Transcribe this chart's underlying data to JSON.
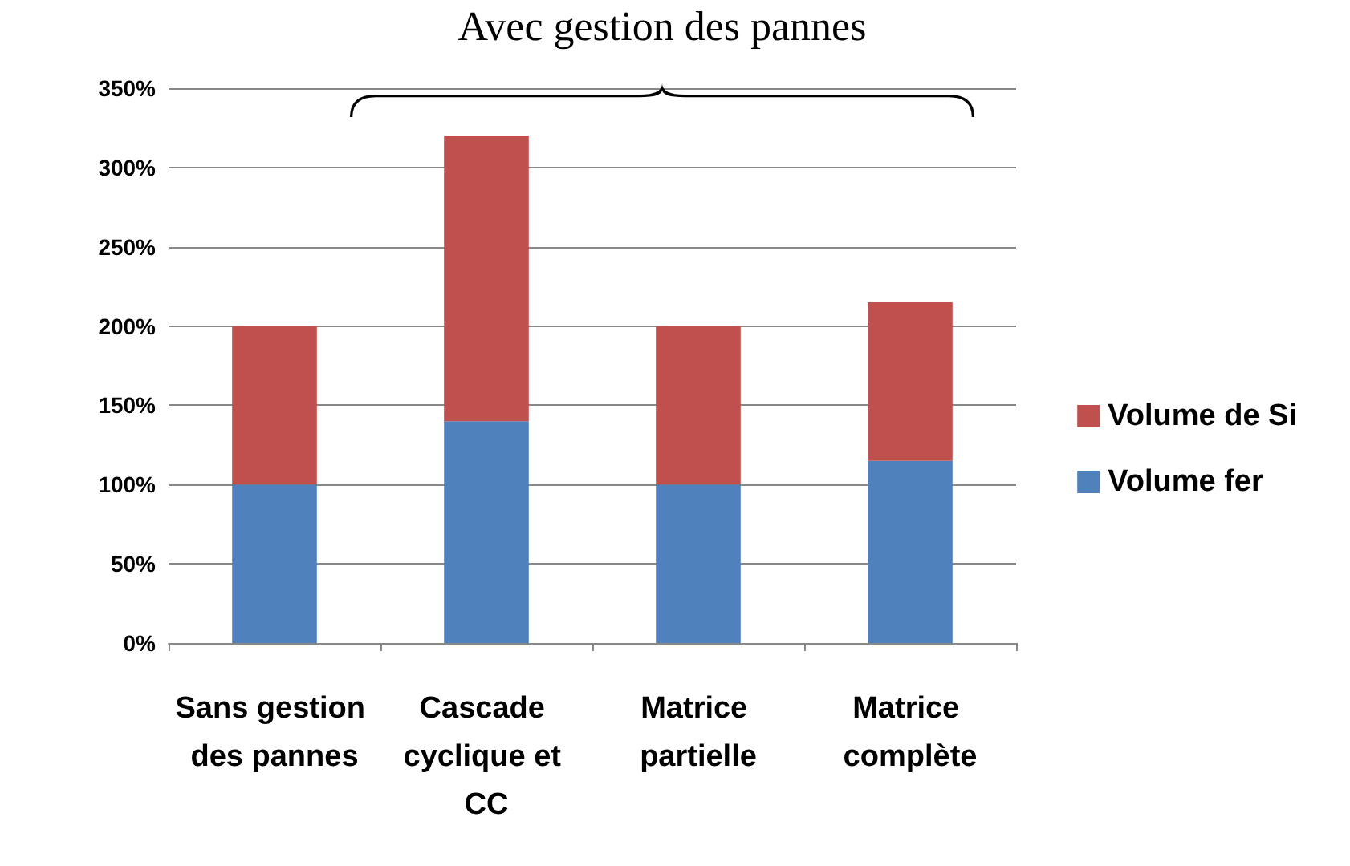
{
  "chart_data": {
    "type": "bar",
    "stacked": true,
    "categories": [
      "Sans gestion des pannes",
      "Cascade cyclique et CC",
      "Matrice partielle",
      "Matrice complète"
    ],
    "series": [
      {
        "name": "Volume fer",
        "color": "#4f81bd",
        "values": [
          100,
          140,
          100,
          115
        ]
      },
      {
        "name": "Volume de Si",
        "color": "#c0504d",
        "values": [
          100,
          180,
          100,
          100
        ]
      }
    ],
    "ylim": [
      0,
      350
    ],
    "yticks": [
      {
        "value": 0,
        "label": "0%"
      },
      {
        "value": 50,
        "label": "50%"
      },
      {
        "value": 100,
        "label": "100%"
      },
      {
        "value": 150,
        "label": "150%"
      },
      {
        "value": 200,
        "label": "200%"
      },
      {
        "value": 250,
        "label": "250%"
      },
      {
        "value": 300,
        "label": "300%"
      },
      {
        "value": 350,
        "label": "350%"
      }
    ],
    "grid": "y",
    "legend": "right",
    "annotations": [
      "Avec gestion des pannes"
    ]
  }
}
